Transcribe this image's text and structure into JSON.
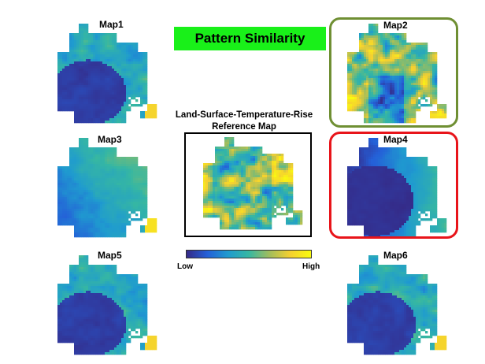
{
  "banner": {
    "text": "Pattern Similarity",
    "color": "#19f019"
  },
  "reference": {
    "title_line1": "Land-Surface-Temperature-Rise",
    "title_line2": "Reference Map"
  },
  "colorbar": {
    "low_label": "Low",
    "high_label": "High",
    "colors": [
      "#352a87",
      "#2460d8",
      "#1f9bcf",
      "#36b7a2",
      "#a2bd5c",
      "#f5d030",
      "#f9fb0e"
    ]
  },
  "maps": [
    {
      "title": "Map1",
      "pattern": "low-core"
    },
    {
      "title": "Map2",
      "pattern": "speckled-high"
    },
    {
      "title": "Map3",
      "pattern": "gradient"
    },
    {
      "title": "Map4",
      "pattern": "deep-low-core"
    },
    {
      "title": "Map5",
      "pattern": "low-core"
    },
    {
      "title": "Map6",
      "pattern": "low-core"
    }
  ],
  "highlights": [
    {
      "target": "Map2",
      "color": "#6f8f33"
    },
    {
      "target": "Map4",
      "color": "#e8141a"
    }
  ]
}
